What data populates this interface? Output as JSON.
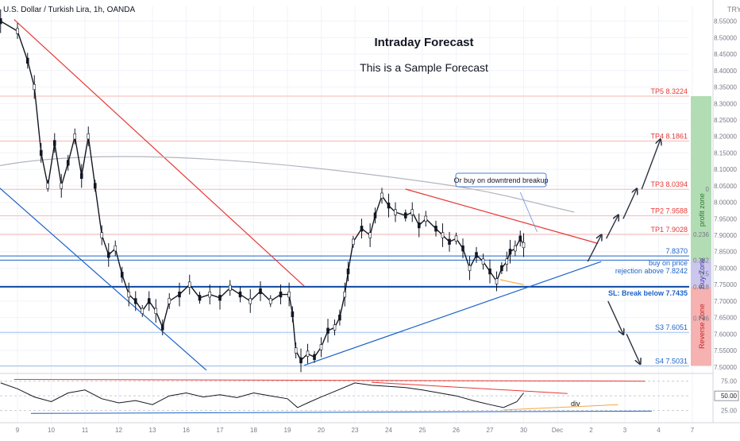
{
  "header": {
    "symbol_line": "U.S. Dollar / Turkish Lira, 1h, OANDA",
    "currency": "TRY"
  },
  "title": "Intraday Forecast",
  "subtitle": "This is a Sample Forecast",
  "levels": [
    {
      "label": "TP5 8.3224",
      "value": 8.3224,
      "color": "#e53935",
      "line_color": "#f7b7b3"
    },
    {
      "label": "TP4 8.1861",
      "value": 8.1861,
      "color": "#e53935",
      "line_color": "#f7b7b3"
    },
    {
      "label": "TP3 8.0394",
      "value": 8.0394,
      "color": "#e53935",
      "line_color": "#f7b7b3"
    },
    {
      "label": "TP2 7.9588",
      "value": 7.9588,
      "color": "#e53935",
      "line_color": "#f7b7b3"
    },
    {
      "label": "TP1 7.9028",
      "value": 7.9028,
      "color": "#e53935",
      "line_color": "#f7b7b3"
    },
    {
      "label": "7.8370",
      "value": 7.837,
      "color": "#1e63c8",
      "line_color": "#1e63c8"
    },
    {
      "label": "S3 7.6051",
      "value": 7.6051,
      "color": "#1e63c8",
      "line_color": "#9ec0ea"
    },
    {
      "label": "S4 7.5031",
      "value": 7.5031,
      "color": "#1e63c8",
      "line_color": "#9ec0ea"
    }
  ],
  "buy_line1": "buy on price",
  "buy_line2": "rejection above 7.8242",
  "buy_level": 7.8242,
  "sl_label": "SL: Break below 7.7435",
  "sl_level": 7.7435,
  "callout": "Or buy on downtrend breakup",
  "fib_labels": [
    "0",
    "0.236",
    "0.382",
    "0.5",
    "0.618",
    "0.786"
  ],
  "fib_values": [
    8.0394,
    7.9028,
    7.8242,
    7.783,
    7.7435,
    7.648
  ],
  "zones": {
    "profit": "profit zone",
    "buy": "Buy Zone",
    "reverse": "Reverse Zone",
    "profit_color": "#a5d6a7",
    "buy_color": "#c5c0ea",
    "reverse_color": "#f4a3a3"
  },
  "div_label": "div",
  "chart_data": {
    "type": "candlestick",
    "y_axis_ticks": [
      "8.55000",
      "8.50000",
      "8.45000",
      "8.40000",
      "8.35000",
      "8.30000",
      "8.25000",
      "8.20000",
      "8.15000",
      "8.10000",
      "8.05000",
      "8.00000",
      "7.95000",
      "7.90000",
      "7.85000",
      "7.80000",
      "7.75000",
      "7.70000",
      "7.65000",
      "7.60000",
      "7.55000",
      "7.50000"
    ],
    "y_axis_values": [
      8.55,
      8.5,
      8.45,
      8.4,
      8.35,
      8.3,
      8.25,
      8.2,
      8.15,
      8.1,
      8.05,
      8.0,
      7.95,
      7.9,
      7.85,
      7.8,
      7.75,
      7.7,
      7.65,
      7.6,
      7.55,
      7.5
    ],
    "ylim": [
      7.485,
      8.595
    ],
    "x_labels": [
      "9",
      "10",
      "11",
      "12",
      "13",
      "16",
      "17",
      "18",
      "19",
      "20",
      "23",
      "24",
      "25",
      "26",
      "27",
      "30",
      "Dec",
      "2",
      "3",
      "4",
      "7"
    ],
    "x_positions": [
      0,
      1,
      2,
      3,
      4,
      5,
      6,
      7,
      8,
      9,
      10,
      11,
      12,
      13,
      14,
      15,
      16,
      17,
      18,
      19,
      20
    ],
    "price_path": [
      [
        -0.5,
        8.55
      ],
      [
        0.0,
        8.52
      ],
      [
        0.3,
        8.43
      ],
      [
        0.5,
        8.35
      ],
      [
        0.7,
        8.15
      ],
      [
        0.9,
        8.05
      ],
      [
        1.1,
        8.18
      ],
      [
        1.3,
        8.05
      ],
      [
        1.5,
        8.12
      ],
      [
        1.7,
        8.2
      ],
      [
        1.9,
        8.08
      ],
      [
        2.1,
        8.2
      ],
      [
        2.3,
        8.05
      ],
      [
        2.5,
        7.9
      ],
      [
        2.7,
        7.84
      ],
      [
        2.9,
        7.86
      ],
      [
        3.1,
        7.78
      ],
      [
        3.3,
        7.72
      ],
      [
        3.5,
        7.7
      ],
      [
        3.7,
        7.67
      ],
      [
        3.9,
        7.7
      ],
      [
        4.1,
        7.67
      ],
      [
        4.3,
        7.62
      ],
      [
        4.5,
        7.7
      ],
      [
        4.8,
        7.72
      ],
      [
        5.1,
        7.75
      ],
      [
        5.4,
        7.71
      ],
      [
        5.7,
        7.72
      ],
      [
        6.0,
        7.71
      ],
      [
        6.3,
        7.74
      ],
      [
        6.6,
        7.72
      ],
      [
        6.9,
        7.7
      ],
      [
        7.2,
        7.73
      ],
      [
        7.5,
        7.7
      ],
      [
        7.8,
        7.72
      ],
      [
        8.05,
        7.72
      ],
      [
        8.15,
        7.66
      ],
      [
        8.25,
        7.55
      ],
      [
        8.4,
        7.52
      ],
      [
        8.6,
        7.54
      ],
      [
        8.8,
        7.53
      ],
      [
        9.0,
        7.56
      ],
      [
        9.2,
        7.61
      ],
      [
        9.4,
        7.62
      ],
      [
        9.55,
        7.65
      ],
      [
        9.7,
        7.72
      ],
      [
        9.8,
        7.79
      ],
      [
        9.95,
        7.88
      ],
      [
        10.2,
        7.92
      ],
      [
        10.45,
        7.9
      ],
      [
        10.6,
        7.96
      ],
      [
        10.8,
        8.02
      ],
      [
        11.0,
        7.99
      ],
      [
        11.2,
        7.97
      ],
      [
        11.5,
        7.96
      ],
      [
        11.7,
        7.97
      ],
      [
        11.9,
        7.93
      ],
      [
        12.1,
        7.95
      ],
      [
        12.4,
        7.92
      ],
      [
        12.6,
        7.9
      ],
      [
        12.8,
        7.88
      ],
      [
        13.0,
        7.89
      ],
      [
        13.2,
        7.86
      ],
      [
        13.4,
        7.8
      ],
      [
        13.6,
        7.84
      ],
      [
        13.8,
        7.82
      ],
      [
        14.0,
        7.79
      ],
      [
        14.2,
        7.76
      ],
      [
        14.35,
        7.8
      ],
      [
        14.5,
        7.82
      ],
      [
        14.6,
        7.85
      ],
      [
        14.75,
        7.86
      ],
      [
        14.9,
        7.89
      ],
      [
        15.0,
        7.87
      ]
    ],
    "oscillator_ticks": [
      "75.00",
      "50.00",
      "25.00"
    ],
    "oscillator_values": [
      75,
      50,
      25
    ],
    "oscillator_current": "50.00",
    "oscillator_path": [
      [
        -0.5,
        72
      ],
      [
        0.0,
        62
      ],
      [
        0.5,
        48
      ],
      [
        1.0,
        40
      ],
      [
        1.5,
        55
      ],
      [
        2.0,
        60
      ],
      [
        2.5,
        45
      ],
      [
        3.0,
        38
      ],
      [
        3.5,
        42
      ],
      [
        4.0,
        35
      ],
      [
        4.5,
        50
      ],
      [
        5.0,
        55
      ],
      [
        5.5,
        48
      ],
      [
        6.0,
        52
      ],
      [
        6.5,
        47
      ],
      [
        7.0,
        55
      ],
      [
        7.5,
        50
      ],
      [
        8.0,
        45
      ],
      [
        8.3,
        30
      ],
      [
        8.6,
        38
      ],
      [
        9.0,
        48
      ],
      [
        9.5,
        60
      ],
      [
        10.0,
        72
      ],
      [
        10.5,
        68
      ],
      [
        11.0,
        66
      ],
      [
        11.5,
        64
      ],
      [
        12.0,
        60
      ],
      [
        12.5,
        55
      ],
      [
        13.0,
        50
      ],
      [
        13.5,
        42
      ],
      [
        14.0,
        35
      ],
      [
        14.4,
        30
      ],
      [
        14.8,
        40
      ],
      [
        15.0,
        55
      ]
    ]
  }
}
